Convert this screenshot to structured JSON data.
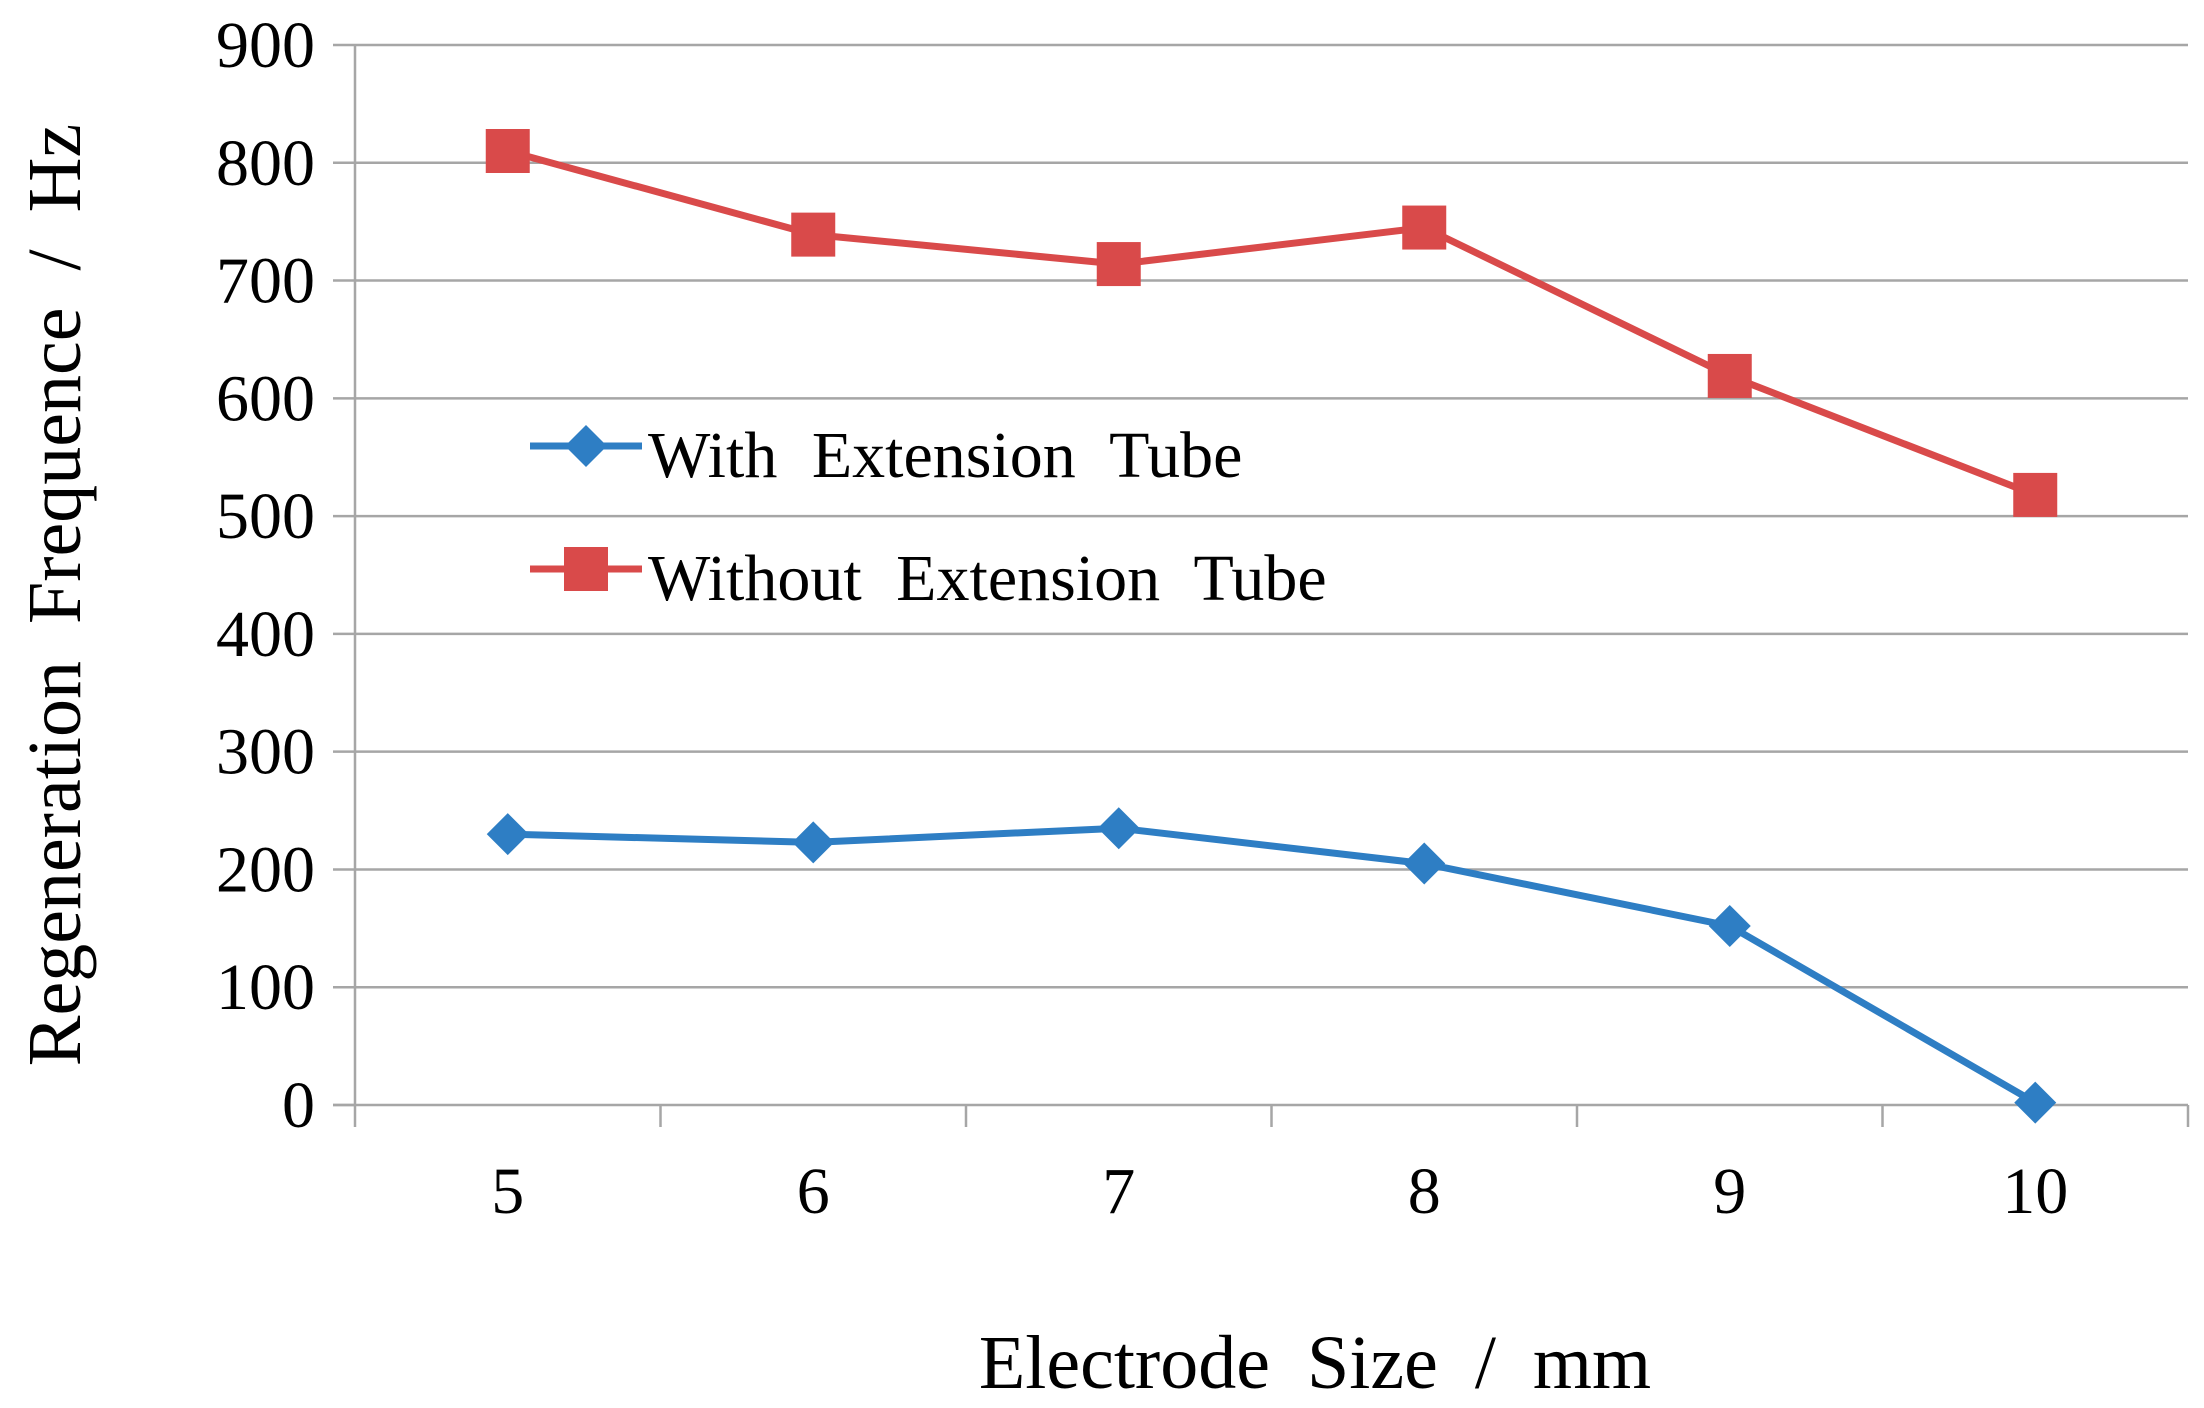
{
  "chart_data": {
    "type": "line",
    "title": "",
    "xlabel": "Electrode Size / mm",
    "ylabel": "Regeneration Frequence / Hz",
    "categories": [
      "5",
      "6",
      "7",
      "8",
      "9",
      "10"
    ],
    "ylim": [
      0,
      900
    ],
    "yticks": [
      0,
      100,
      200,
      300,
      400,
      500,
      600,
      700,
      800,
      900
    ],
    "grid": "horizontal",
    "legend_position": "center-left",
    "series": [
      {
        "name": "With  Extension Tube",
        "color": "#2E7EC4",
        "marker": "diamond",
        "values": [
          230,
          223,
          235,
          205,
          152,
          2
        ]
      },
      {
        "name": "Without  Extension Tube",
        "color": "#D94A4A",
        "marker": "square",
        "values": [
          810,
          739,
          714,
          745,
          619,
          518
        ]
      }
    ]
  }
}
